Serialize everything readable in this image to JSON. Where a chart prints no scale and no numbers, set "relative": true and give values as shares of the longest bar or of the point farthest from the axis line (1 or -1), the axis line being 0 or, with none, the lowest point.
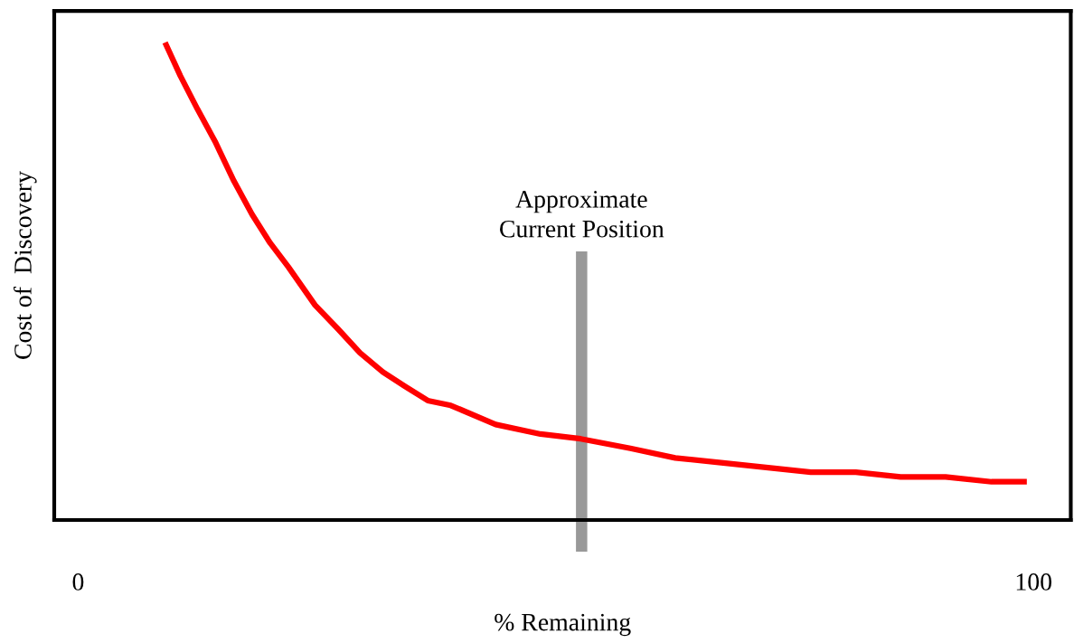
{
  "chart_data": {
    "type": "line",
    "relative": true,
    "xlabel": "% Remaining",
    "ylabel": "Cost of  Discovery",
    "x": [
      9.1,
      10.7,
      12.5,
      14.4,
      16.3,
      18.2,
      20.1,
      22.0,
      24.8,
      27.2,
      29.5,
      31.9,
      34.2,
      36.6,
      39.0,
      43.7,
      48.4,
      52.6,
      57.8,
      62.5,
      67.3,
      72.0,
      76.7,
      81.4,
      86.1,
      90.8,
      95.6,
      99.3
    ],
    "series": [
      {
        "color": "#ff0000",
        "values": [
          1,
          0.93,
          0.86,
          0.79,
          0.71,
          0.64,
          0.58,
          0.53,
          0.45,
          0.4,
          0.35,
          0.31,
          0.28,
          0.25,
          0.24,
          0.2,
          0.18,
          0.17,
          0.15,
          0.13,
          0.12,
          0.11,
          0.1,
          0.1,
          0.09,
          0.09,
          0.08,
          0.08
        ]
      }
    ],
    "xlim": [
      -2.5,
      103.9
    ],
    "xticks": [
      0,
      100
    ],
    "tick_labels": "x",
    "grid": false,
    "marker": "none",
    "line_style": "solid",
    "ref_lines": [
      {
        "axis": "x",
        "value": 52.7,
        "label": "Approximate\nCurrent Position",
        "color": "#999999"
      }
    ]
  }
}
